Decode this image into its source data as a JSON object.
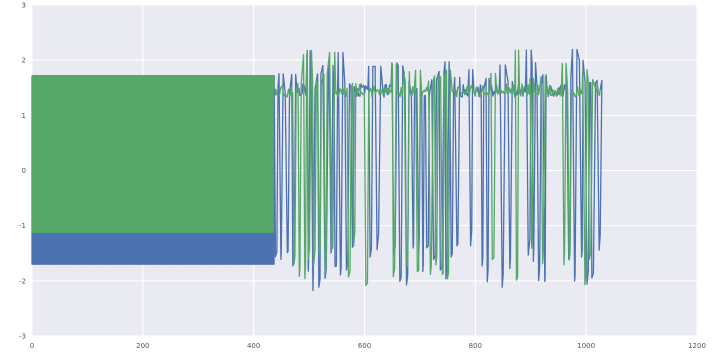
{
  "chart_data": {
    "type": "line",
    "title": "",
    "xlabel": "",
    "ylabel": "",
    "xlim": [
      0,
      1200
    ],
    "ylim": [
      -3,
      3
    ],
    "x_ticks": [
      0,
      200,
      400,
      600,
      800,
      1000,
      1200
    ],
    "y_ticks": [
      -3,
      -2,
      -1,
      0,
      1,
      2,
      3
    ],
    "grid": true,
    "legend": "none",
    "background_color": "#eaeaf2",
    "grid_color": "#ffffff",
    "series": [
      {
        "color": "#4c72b0",
        "x_range": [
          0,
          1025
        ],
        "segments": [
          {
            "x_start": 0,
            "x_end": 437,
            "shape": "square-wave",
            "period": 4.2,
            "high": 1.72,
            "low": -1.7
          },
          {
            "x_start": 437,
            "x_end": 1025,
            "shape": "bursts",
            "high_range": [
              1.35,
              2.2
            ],
            "low_range": [
              -2.2,
              -1.35
            ],
            "rest_level": 1.45
          }
        ]
      },
      {
        "color": "#55a868",
        "x_range": [
          0,
          1025
        ],
        "segments": [
          {
            "x_start": 0,
            "x_end": 437,
            "shape": "square-wave",
            "period": 4.2,
            "high": 1.72,
            "low": -1.12
          },
          {
            "x_start": 437,
            "x_end": 1025,
            "shape": "bursts",
            "high_range": [
              1.35,
              2.2
            ],
            "low_range": [
              -2.2,
              -1.35
            ],
            "rest_level": 1.45
          }
        ]
      }
    ]
  }
}
